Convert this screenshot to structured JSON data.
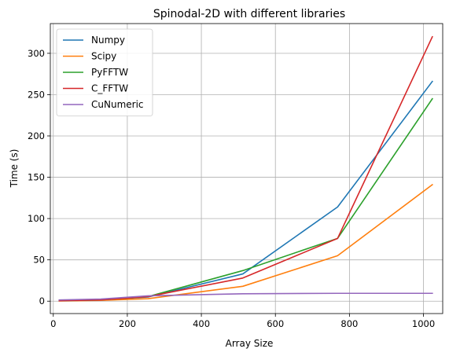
{
  "chart_data": {
    "type": "line",
    "title": "Spinodal-2D with different libraries",
    "xlabel": "Array Size",
    "ylabel": "Time (s)",
    "xlim": [
      -8,
      1052
    ],
    "ylim": [
      -15,
      336
    ],
    "xticks": [
      0,
      200,
      400,
      600,
      800,
      1000
    ],
    "yticks": [
      0,
      50,
      100,
      150,
      200,
      250,
      300
    ],
    "grid": true,
    "legend_position": "top-left",
    "series": [
      {
        "name": "Numpy",
        "color": "#1f77b4",
        "x": [
          16,
          128,
          256,
          512,
          768,
          1024
        ],
        "y": [
          0.5,
          1.5,
          5,
          33,
          114,
          266
        ]
      },
      {
        "name": "Scipy",
        "color": "#ff7f0e",
        "x": [
          16,
          128,
          256,
          512,
          768,
          1024
        ],
        "y": [
          0.3,
          1,
          3,
          18,
          55,
          141
        ]
      },
      {
        "name": "PyFFTW",
        "color": "#2ca02c",
        "x": [
          16,
          128,
          256,
          512,
          768,
          1024
        ],
        "y": [
          0.5,
          1.5,
          5.5,
          37,
          76,
          245
        ]
      },
      {
        "name": "C_FFTW",
        "color": "#d62728",
        "x": [
          16,
          128,
          256,
          512,
          768,
          1024
        ],
        "y": [
          0.5,
          1.5,
          5.5,
          28,
          76,
          320
        ]
      },
      {
        "name": "CuNumeric",
        "color": "#9467bd",
        "x": [
          16,
          128,
          256,
          512,
          768,
          1024
        ],
        "y": [
          1.5,
          2.5,
          6.5,
          9,
          9.5,
          9.5
        ]
      }
    ]
  }
}
